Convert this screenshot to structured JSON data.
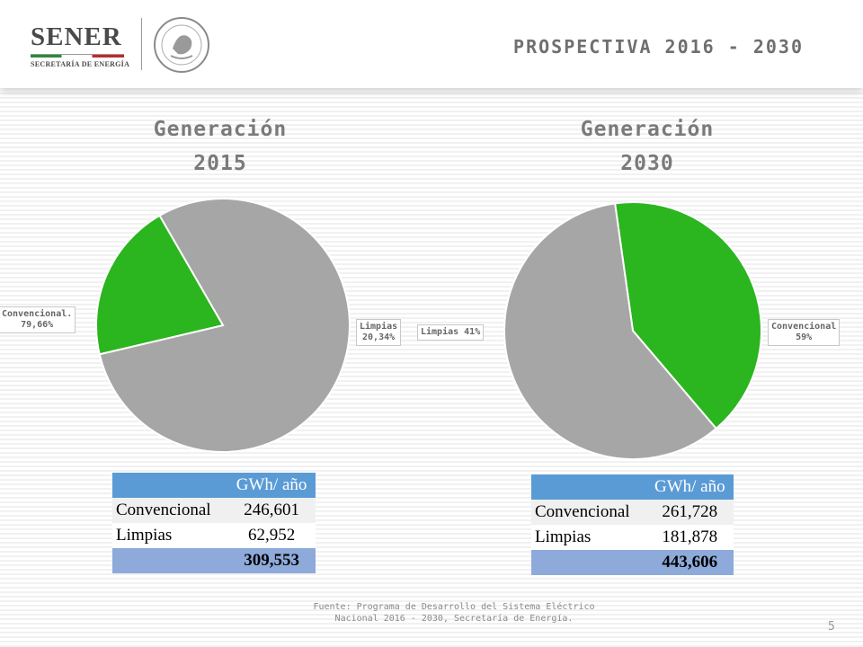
{
  "header": {
    "logo_name": "SENER",
    "logo_sub": "SECRETARÍA DE ENERGÍA",
    "title": "PROSPECTIVA 2016 - 2030"
  },
  "chart_data": [
    {
      "type": "pie",
      "title_line1": "Generación",
      "title_line2": "2015",
      "slices": [
        {
          "name": "Convencional",
          "label": "Convencional.\n79,66%",
          "value": 79.66,
          "color": "#a6a6a6"
        },
        {
          "name": "Limpias",
          "label": "Limpias\n20,34%",
          "value": 20.34,
          "color": "#2bb51e"
        }
      ]
    },
    {
      "type": "pie",
      "title_line1": "Generación",
      "title_line2": "2030",
      "slices": [
        {
          "name": "Limpias",
          "label": "Limpias 41%",
          "value": 41,
          "color": "#2bb51e"
        },
        {
          "name": "Convencional",
          "label": "Convencional\n59%",
          "value": 59,
          "color": "#a6a6a6"
        }
      ]
    }
  ],
  "tables": [
    {
      "header": "GWh/ año",
      "rows": [
        {
          "label": "Convencional",
          "value": "246,601"
        },
        {
          "label": "Limpias",
          "value": "62,952"
        }
      ],
      "total": "309,553"
    },
    {
      "header": "GWh/ año",
      "rows": [
        {
          "label": "Convencional",
          "value": "261,728"
        },
        {
          "label": "Limpias",
          "value": "181,878"
        }
      ],
      "total": "443,606"
    }
  ],
  "source": "Fuente: Programa de Desarrollo del Sistema Eléctrico\nNacional 2016 - 2030, Secretaría de Energía.",
  "page_number": "5"
}
